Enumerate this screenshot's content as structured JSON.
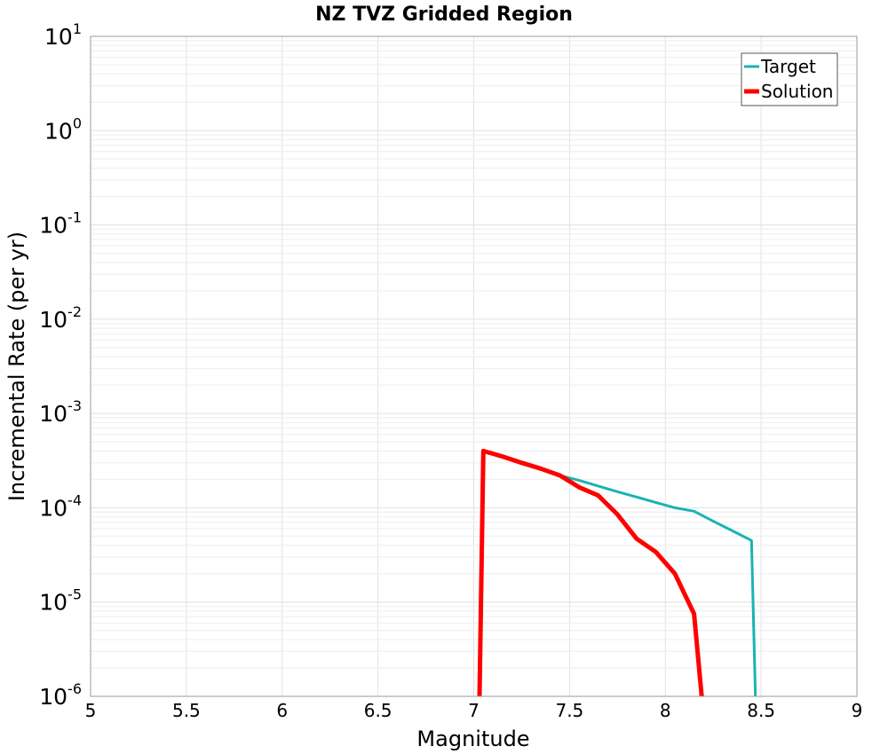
{
  "chart_data": {
    "type": "line",
    "title": "NZ TVZ Gridded Region",
    "xlabel": "Magnitude",
    "ylabel": "Incremental Rate (per yr)",
    "xlim": [
      5,
      9
    ],
    "ylim": [
      1e-06,
      10
    ],
    "yscale": "log",
    "grid": true,
    "legend_position": "top-right",
    "x_ticks": [
      "5",
      "5.5",
      "6",
      "6.5",
      "7",
      "7.5",
      "8",
      "8.5",
      "9"
    ],
    "y_ticks": [
      {
        "base": "10",
        "exp": "1"
      },
      {
        "base": "10",
        "exp": "0"
      },
      {
        "base": "10",
        "exp": "-1"
      },
      {
        "base": "10",
        "exp": "-2"
      },
      {
        "base": "10",
        "exp": "-3"
      },
      {
        "base": "10",
        "exp": "-4"
      },
      {
        "base": "10",
        "exp": "-5"
      },
      {
        "base": "10",
        "exp": "-6"
      }
    ],
    "series": [
      {
        "name": "Target",
        "color": "#1ab3b3",
        "x": [
          7.05,
          7.15,
          7.25,
          7.35,
          7.45,
          7.55,
          7.65,
          7.75,
          7.85,
          7.95,
          8.05,
          8.15,
          8.25,
          8.35,
          8.45,
          8.47
        ],
        "y": [
          0.0004,
          0.00035,
          0.0003,
          0.00026,
          0.00022,
          0.000195,
          0.00017,
          0.000148,
          0.00013,
          0.000114,
          0.0001,
          9.2e-05,
          7.2e-05,
          5.7e-05,
          4.5e-05,
          1e-06
        ]
      },
      {
        "name": "Solution",
        "color": "#ff0000",
        "x": [
          7.03,
          7.05,
          7.15,
          7.25,
          7.35,
          7.45,
          7.55,
          7.65,
          7.75,
          7.85,
          7.95,
          8.05,
          8.15,
          8.19
        ],
        "y": [
          1e-06,
          0.0004,
          0.00035,
          0.0003,
          0.00026,
          0.00022,
          0.000165,
          0.000135,
          8.5e-05,
          4.7e-05,
          3.4e-05,
          2e-05,
          7.5e-06,
          1e-06
        ]
      }
    ]
  }
}
